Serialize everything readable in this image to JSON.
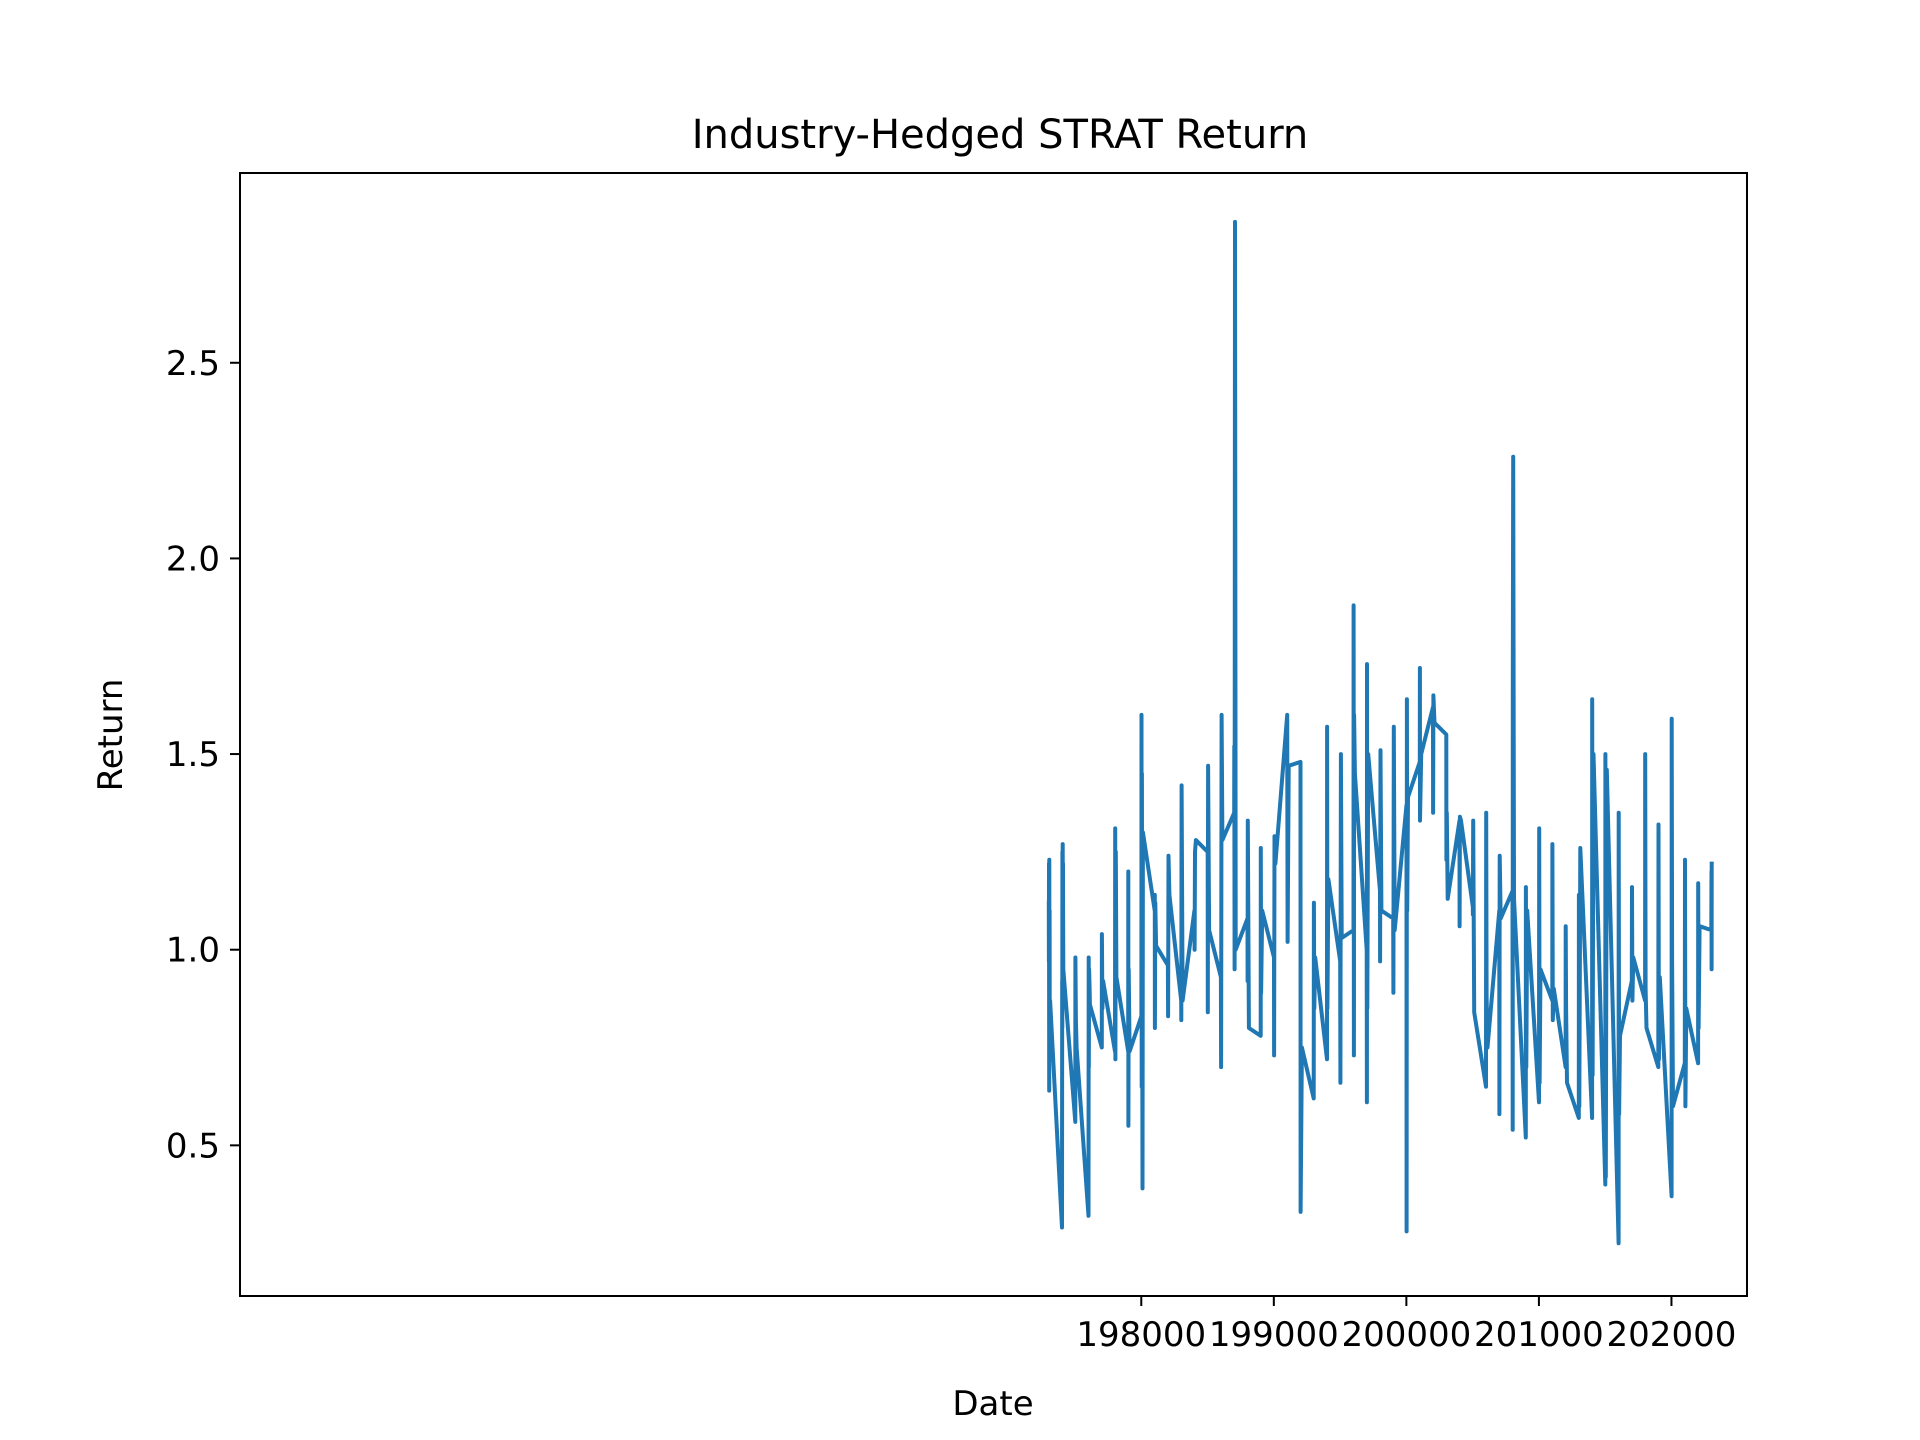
{
  "chart_data": {
    "type": "line",
    "title": "Industry-Hedged STRAT Return",
    "xlabel": "Date",
    "ylabel": "Return",
    "xlim": [
      191200,
      202570
    ],
    "ylim": [
      0.115,
      2.985
    ],
    "xticks": [
      198000,
      199000,
      200000,
      201000,
      202000
    ],
    "xtick_labels": [
      "198000",
      "199000",
      "200000",
      "201000",
      "202000"
    ],
    "yticks": [
      0.5,
      1.0,
      1.5,
      2.0,
      2.5
    ],
    "ytick_labels": [
      "0.5",
      "1.0",
      "1.5",
      "2.0",
      "2.5"
    ],
    "grid": false,
    "legend": "none",
    "series": [
      {
        "color": "#1f77b4",
        "x": [
          197302,
          197303,
          197304,
          197305,
          197306,
          197307,
          197308,
          197309,
          197310,
          197311,
          197312,
          197402,
          197403,
          197404,
          197405,
          197406,
          197407,
          197408,
          197409,
          197410,
          197412,
          197502,
          197503,
          197507,
          197512,
          197602,
          197603,
          197604,
          197606,
          197610,
          197612,
          197702,
          197703,
          197707,
          197712,
          197802,
          197803,
          197805,
          197808,
          197812,
          197901,
          197902,
          197903,
          197905,
          197912,
          198001,
          198002,
          198003,
          198005,
          198009,
          198012,
          198101,
          198102,
          198103,
          198106,
          198112,
          198201,
          198202,
          198205,
          198212,
          198301,
          198302,
          198304,
          198312,
          198401,
          198402,
          198405,
          198412,
          198501,
          198502,
          198504,
          198512,
          198601,
          198602,
          198606,
          198612,
          198701,
          198702,
          198704,
          198707,
          198712,
          198801,
          198802,
          198804,
          198812,
          198901,
          198902,
          198904,
          198912,
          199001,
          199002,
          199005,
          199012,
          199101,
          199102,
          199104,
          199112,
          199201,
          199202,
          199212,
          199301,
          199302,
          199305,
          199312,
          199401,
          199402,
          199404,
          199412,
          199501,
          199502,
          199506,
          199512,
          199601,
          199602,
          199604,
          199606,
          199612,
          199701,
          199702,
          199703,
          199705,
          199712,
          199801,
          199802,
          199805,
          199812,
          199901,
          199902,
          199905,
          199912,
          200001,
          200002,
          200004,
          200006,
          200012,
          200101,
          200102,
          200103,
          200112,
          200201,
          200202,
          200204,
          200212,
          200301,
          200302,
          200305,
          200312,
          200401,
          200402,
          200404,
          200412,
          200501,
          200502,
          200504,
          200512,
          200601,
          200602,
          200605,
          200612,
          200701,
          200702,
          200704,
          200712,
          200801,
          200802,
          200803,
          200806,
          200812,
          200901,
          200902,
          200905,
          200912,
          201001,
          201002,
          201005,
          201012,
          201101,
          201102,
          201105,
          201112,
          201201,
          201202,
          201205,
          201212,
          201301,
          201302,
          201305,
          201312,
          201401,
          201402,
          201405,
          201412,
          201501,
          201502,
          201505,
          201512,
          201601,
          201602,
          201605,
          201612,
          201701,
          201702,
          201705,
          201712,
          201801,
          201802,
          201805,
          201812,
          201901,
          201902,
          201905,
          201912,
          202001,
          202002,
          202005,
          202012,
          202101,
          202102,
          202105,
          202112,
          202201,
          202202,
          202205,
          202212,
          202301,
          202302,
          202303,
          202304
        ],
        "y": [
          1.12,
          0.97,
          1.22,
          0.64,
          1.23,
          0.95,
          1.1,
          0.85,
          0.72,
          0.8,
          0.87,
          0.29,
          0.92,
          0.8,
          1.25,
          0.85,
          1.27,
          1.05,
          1.22,
          1.1,
          0.95,
          0.56,
          0.98,
          0.82,
          0.75,
          0.32,
          0.98,
          0.7,
          0.95,
          0.9,
          0.86,
          0.75,
          1.04,
          0.85,
          0.92,
          0.74,
          1.31,
          0.72,
          1.25,
          0.93,
          0.74,
          1.2,
          0.55,
          0.95,
          0.74,
          0.83,
          1.6,
          0.65,
          1.45,
          0.39,
          1.3,
          1.1,
          1.14,
          0.8,
          1.12,
          1.01,
          0.96,
          0.83,
          1.24,
          1.14,
          0.87,
          0.82,
          1.42,
          0.87,
          1.1,
          1.0,
          1.25,
          1.28,
          1.25,
          0.84,
          1.47,
          1.05,
          0.93,
          0.7,
          1.6,
          1.28,
          1.35,
          1.52,
          0.95,
          2.86,
          1.0,
          1.08,
          0.92,
          1.33,
          0.8,
          0.78,
          1.26,
          0.89,
          1.1,
          0.98,
          0.73,
          1.29,
          1.22,
          1.6,
          1.47,
          1.02,
          1.47,
          1.48,
          0.33,
          0.75,
          0.62,
          1.12,
          0.85,
          0.98,
          0.72,
          1.57,
          0.85,
          1.18,
          0.97,
          0.66,
          1.5,
          1.03,
          1.05,
          1.88,
          0.73,
          1.6,
          1.45,
          1.0,
          0.61,
          1.73,
          0.85,
          1.5,
          1.15,
          0.97,
          1.51,
          1.1,
          1.08,
          0.89,
          1.57,
          1.05,
          1.37,
          0.28,
          1.64,
          1.1,
          1.39,
          1.48,
          1.72,
          1.33,
          1.5,
          1.62,
          1.35,
          1.65,
          1.58,
          1.55,
          1.23,
          1.35,
          1.13,
          1.33,
          1.06,
          1.34,
          1.33,
          1.11,
          1.09,
          1.33,
          0.84,
          0.65,
          1.35,
          0.88,
          0.75,
          1.1,
          0.58,
          1.24,
          1.08,
          1.15,
          0.54,
          1.68,
          2.26,
          1.13,
          0.52,
          1.16,
          0.7,
          1.1,
          0.61,
          1.31,
          0.66,
          0.95,
          0.87,
          1.27,
          0.82,
          0.9,
          0.7,
          1.06,
          0.85,
          0.66,
          0.57,
          1.14,
          0.6,
          1.26,
          0.57,
          1.64,
          0.68,
          1.5,
          0.4,
          1.5,
          0.42,
          1.46,
          0.25,
          1.35,
          0.58,
          0.78,
          0.92,
          1.16,
          0.87,
          0.98,
          0.87,
          1.5,
          0.9,
          0.8,
          0.7,
          1.32,
          0.72,
          0.93,
          0.37,
          1.59,
          0.97,
          0.6,
          0.71,
          1.23,
          0.6,
          0.85,
          0.71,
          1.17,
          0.8,
          1.06,
          1.05,
          1.2,
          0.95,
          1.22
        ]
      }
    ]
  }
}
